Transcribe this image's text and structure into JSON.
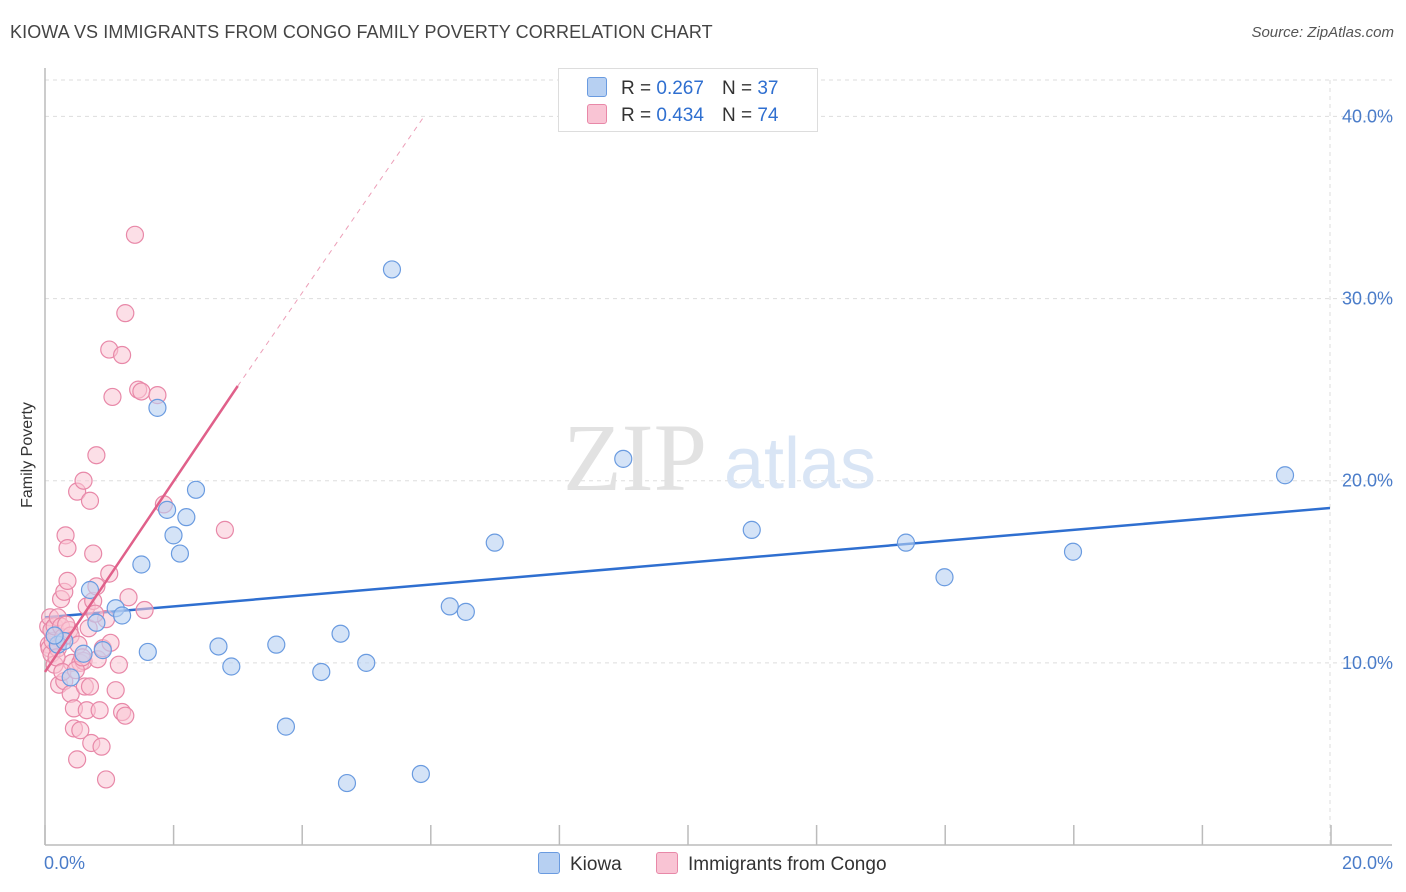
{
  "title": "KIOWA VS IMMIGRANTS FROM CONGO FAMILY POVERTY CORRELATION CHART",
  "source": "Source: ZipAtlas.com",
  "watermark": {
    "zip": "ZIP",
    "atlas": "atlas"
  },
  "legend": {
    "kiowa": {
      "r_label": "R =",
      "r_value": "0.267",
      "n_label": "N =",
      "n_value": "37"
    },
    "congo": {
      "r_label": "R =",
      "r_value": "0.434",
      "n_label": "N =",
      "n_value": "74"
    }
  },
  "colors": {
    "kiowa_fill": "#b7d0f2",
    "kiowa_stroke": "#6a9be0",
    "kiowa_line": "#2f6fd0",
    "congo_fill": "#f9c4d4",
    "congo_stroke": "#e888a8",
    "congo_line": "#e0608a",
    "grid": "#dddddd",
    "tick_text": "#4a7cc9"
  },
  "chart_data": {
    "type": "scatter",
    "title": "KIOWA VS IMMIGRANTS FROM CONGO FAMILY POVERTY CORRELATION CHART",
    "xlabel": "",
    "ylabel": "Family Poverty",
    "xlim": [
      0,
      20
    ],
    "ylim": [
      0,
      42
    ],
    "x_tick_labels": [
      "0.0%",
      "20.0%"
    ],
    "y_ticks": [
      10,
      20,
      30,
      40
    ],
    "y_tick_labels": [
      "10.0%",
      "20.0%",
      "30.0%",
      "40.0%"
    ],
    "series": [
      {
        "name": "Kiowa",
        "r": 0.267,
        "n": 37,
        "trend": {
          "x": [
            0.0,
            20.0
          ],
          "y": [
            12.5,
            18.5
          ]
        },
        "points": [
          [
            0.2,
            11.0
          ],
          [
            0.3,
            11.2
          ],
          [
            0.4,
            9.2
          ],
          [
            0.6,
            10.5
          ],
          [
            0.7,
            14.0
          ],
          [
            0.8,
            12.2
          ],
          [
            0.9,
            10.7
          ],
          [
            1.1,
            13.0
          ],
          [
            1.2,
            12.6
          ],
          [
            1.5,
            15.4
          ],
          [
            1.6,
            10.6
          ],
          [
            1.75,
            24.0
          ],
          [
            1.9,
            18.4
          ],
          [
            2.0,
            17.0
          ],
          [
            2.1,
            16.0
          ],
          [
            2.2,
            18.0
          ],
          [
            2.35,
            19.5
          ],
          [
            2.7,
            10.9
          ],
          [
            2.9,
            9.8
          ],
          [
            3.6,
            11.0
          ],
          [
            3.75,
            6.5
          ],
          [
            4.3,
            9.5
          ],
          [
            4.6,
            11.6
          ],
          [
            4.7,
            3.4
          ],
          [
            5.0,
            10.0
          ],
          [
            5.4,
            31.6
          ],
          [
            5.85,
            3.9
          ],
          [
            6.3,
            13.1
          ],
          [
            6.55,
            12.8
          ],
          [
            7.0,
            16.6
          ],
          [
            9.0,
            21.2
          ],
          [
            11.0,
            17.3
          ],
          [
            13.4,
            16.6
          ],
          [
            14.0,
            14.7
          ],
          [
            16.0,
            16.1
          ],
          [
            19.3,
            20.3
          ],
          [
            0.15,
            11.5
          ]
        ]
      },
      {
        "name": "Immigrants from Congo",
        "r": 0.434,
        "n": 74,
        "trend": {
          "x": [
            0.0,
            3.0
          ],
          "y": [
            9.5,
            25.2
          ]
        },
        "trend_dashed": {
          "x": [
            3.0,
            5.9
          ],
          "y": [
            25.2,
            40.0
          ]
        },
        "points": [
          [
            0.05,
            12.0
          ],
          [
            0.06,
            11.0
          ],
          [
            0.07,
            10.8
          ],
          [
            0.08,
            12.5
          ],
          [
            0.1,
            11.8
          ],
          [
            0.1,
            10.5
          ],
          [
            0.12,
            11.2
          ],
          [
            0.15,
            12.0
          ],
          [
            0.15,
            9.9
          ],
          [
            0.2,
            12.5
          ],
          [
            0.2,
            10.8
          ],
          [
            0.22,
            8.8
          ],
          [
            0.25,
            13.5
          ],
          [
            0.25,
            12.0
          ],
          [
            0.28,
            11.4
          ],
          [
            0.3,
            13.9
          ],
          [
            0.3,
            9.0
          ],
          [
            0.32,
            17.0
          ],
          [
            0.35,
            16.3
          ],
          [
            0.35,
            14.5
          ],
          [
            0.38,
            11.8
          ],
          [
            0.4,
            11.5
          ],
          [
            0.4,
            8.3
          ],
          [
            0.42,
            10.0
          ],
          [
            0.45,
            7.5
          ],
          [
            0.45,
            6.4
          ],
          [
            0.5,
            19.4
          ],
          [
            0.5,
            4.7
          ],
          [
            0.52,
            11.0
          ],
          [
            0.55,
            10.0
          ],
          [
            0.55,
            6.3
          ],
          [
            0.6,
            20.0
          ],
          [
            0.6,
            10.1
          ],
          [
            0.62,
            8.7
          ],
          [
            0.65,
            13.1
          ],
          [
            0.65,
            7.4
          ],
          [
            0.7,
            18.9
          ],
          [
            0.7,
            8.7
          ],
          [
            0.72,
            5.6
          ],
          [
            0.75,
            16.0
          ],
          [
            0.75,
            13.4
          ],
          [
            0.8,
            21.4
          ],
          [
            0.8,
            14.2
          ],
          [
            0.82,
            10.2
          ],
          [
            0.85,
            7.4
          ],
          [
            0.88,
            5.4
          ],
          [
            0.9,
            10.8
          ],
          [
            0.95,
            12.4
          ],
          [
            0.95,
            3.6
          ],
          [
            1.0,
            27.2
          ],
          [
            1.0,
            14.9
          ],
          [
            1.02,
            11.1
          ],
          [
            1.05,
            24.6
          ],
          [
            1.1,
            8.5
          ],
          [
            1.15,
            9.9
          ],
          [
            1.2,
            26.9
          ],
          [
            1.2,
            7.3
          ],
          [
            1.25,
            29.2
          ],
          [
            1.25,
            7.1
          ],
          [
            1.3,
            13.6
          ],
          [
            1.4,
            33.5
          ],
          [
            1.45,
            25.0
          ],
          [
            1.5,
            24.9
          ],
          [
            1.55,
            12.9
          ],
          [
            1.75,
            24.7
          ],
          [
            1.85,
            18.7
          ],
          [
            2.8,
            17.3
          ],
          [
            0.18,
            10.3
          ],
          [
            0.27,
            9.5
          ],
          [
            0.33,
            12.1
          ],
          [
            0.48,
            9.6
          ],
          [
            0.58,
            10.3
          ],
          [
            0.68,
            11.9
          ],
          [
            0.78,
            12.7
          ]
        ]
      }
    ]
  }
}
